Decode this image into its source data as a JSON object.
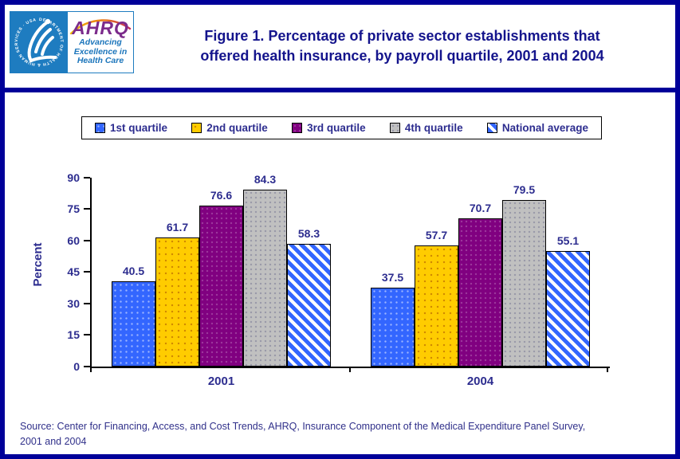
{
  "header": {
    "title_line1": "Figure 1. Percentage of private sector establishments that",
    "title_line2": "offered health insurance, by payroll quartile, 2001 and 2004",
    "logo": {
      "hhs_seal_ring_text": "DEPARTMENT OF HEALTH & HUMAN SERVICES · USA",
      "ahrq_acronym": "AHRQ",
      "tagline_line1": "Advancing",
      "tagline_line2": "Excellence in",
      "tagline_line3": "Health Care"
    }
  },
  "chart_data": {
    "type": "bar",
    "title": "Figure 1. Percentage of private sector establishments that offered health insurance, by payroll quartile, 2001 and 2004",
    "categories": [
      "2001",
      "2004"
    ],
    "series": [
      {
        "name": "1st quartile",
        "values": [
          40.5,
          37.5
        ],
        "color": "#3366FF",
        "pattern": "dots-light"
      },
      {
        "name": "2nd quartile",
        "values": [
          61.7,
          57.7
        ],
        "color": "#FFCC00",
        "pattern": "dots-dark"
      },
      {
        "name": "3rd quartile",
        "values": [
          76.6,
          70.7
        ],
        "color": "#800080",
        "pattern": "dots-subtle"
      },
      {
        "name": "4th quartile",
        "values": [
          84.3,
          79.5
        ],
        "color": "#C0C0C0",
        "pattern": "dots-gray"
      },
      {
        "name": "National average",
        "values": [
          58.3,
          55.1
        ],
        "color": "#3366FF",
        "pattern": "diagonal-stripes"
      }
    ],
    "xlabel": "",
    "ylabel": "Percent",
    "ylim": [
      0,
      90
    ],
    "yticks": [
      0,
      15,
      30,
      45,
      60,
      75,
      90
    ],
    "grid": false,
    "legend_position": "top",
    "value_labels": true
  },
  "colors": {
    "page_border": "#000099",
    "title_text": "#14148C",
    "axis_text": "#2D2D8F",
    "hhs_blue": "#1E7CC0",
    "ahrq_purple": "#7B2B8B"
  },
  "source": {
    "text": "Source: Center for Financing, Access, and Cost Trends, AHRQ, Insurance Component of the Medical Expenditure Panel Survey,\n2001 and 2004"
  }
}
